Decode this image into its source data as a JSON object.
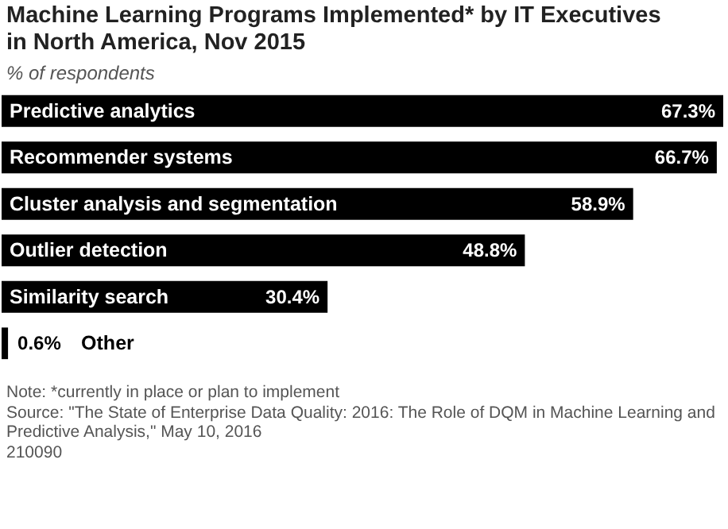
{
  "chart_data": {
    "type": "bar",
    "orientation": "horizontal",
    "title": "Machine Learning Programs Implemented* by IT Executives in North America, Nov 2015",
    "subtitle": "% of respondents",
    "categories": [
      "Predictive analytics",
      "Recommender systems",
      "Cluster analysis and segmentation",
      "Outlier detection",
      "Similarity search",
      "Other"
    ],
    "values": [
      67.3,
      66.7,
      58.9,
      48.8,
      30.4,
      0.6
    ],
    "value_labels": [
      "67.3%",
      "66.7%",
      "58.9%",
      "48.8%",
      "30.4%",
      "0.6%"
    ],
    "color": "#000000",
    "annotations": [
      "Note: *currently in place or plan to implement",
      "Source: \"The State of Enterprise Data Quality: 2016: The Role of DQM in Machine Learning and Predictive Analysis,\" May 10, 2016",
      "210090"
    ]
  }
}
